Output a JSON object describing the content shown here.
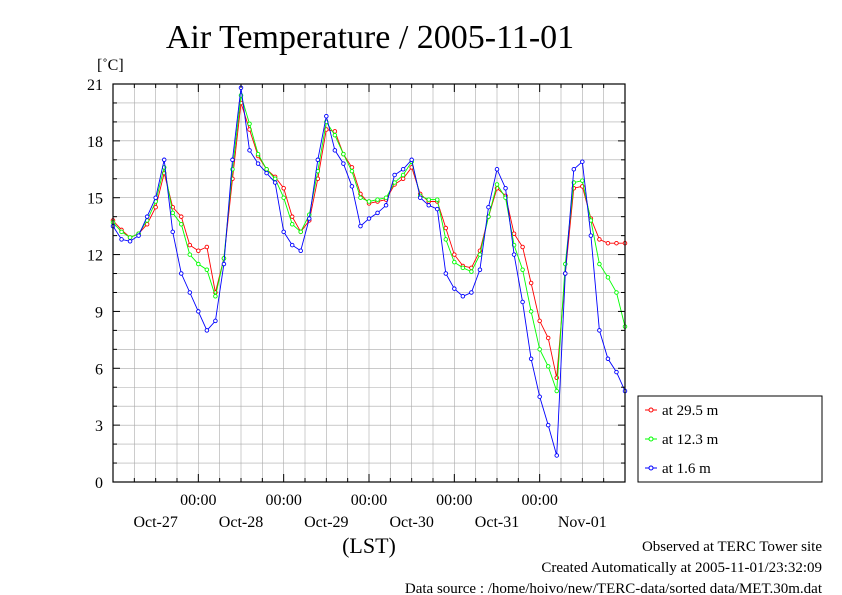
{
  "chart_data": {
    "type": "line",
    "title": "Air Temperature / 2005-11-01",
    "ylabel": "[˚C]",
    "xlabel": "(LST)",
    "ylim": [
      0,
      21
    ],
    "y_ticks": [
      0,
      3,
      6,
      9,
      12,
      15,
      18,
      21
    ],
    "x_range_days": [
      26.0,
      32.0
    ],
    "x_time_labels": [
      "00:00",
      "00:00",
      "00:00",
      "00:00",
      "00:00"
    ],
    "x_date_labels": [
      "Oct-27",
      "Oct-28",
      "Oct-29",
      "Oct-30",
      "Oct-31",
      "Nov-01"
    ],
    "legend_position": "bottom-right",
    "grid": true,
    "series": [
      {
        "name": "at 29.5 m",
        "color": "#ff0000",
        "x": [
          26.0,
          26.1,
          26.2,
          26.3,
          26.4,
          26.5,
          26.6,
          26.7,
          26.8,
          26.9,
          27.0,
          27.1,
          27.2,
          27.3,
          27.4,
          27.5,
          27.6,
          27.7,
          27.8,
          27.9,
          28.0,
          28.1,
          28.2,
          28.3,
          28.4,
          28.5,
          28.6,
          28.7,
          28.8,
          28.9,
          29.0,
          29.1,
          29.2,
          29.3,
          29.4,
          29.5,
          29.6,
          29.7,
          29.8,
          29.9,
          30.0,
          30.1,
          30.2,
          30.3,
          30.4,
          30.5,
          30.6,
          30.7,
          30.8,
          30.9,
          31.0,
          31.1,
          31.2,
          31.3,
          31.4,
          31.5,
          31.6,
          31.7,
          31.8,
          31.9,
          32.0
        ],
        "values": [
          13.8,
          13.3,
          12.9,
          13.1,
          13.6,
          14.5,
          16.3,
          14.5,
          14.0,
          12.5,
          12.2,
          12.4,
          10.0,
          11.8,
          16.0,
          20.0,
          18.6,
          17.2,
          16.5,
          16.1,
          15.5,
          14.0,
          13.2,
          13.8,
          16.0,
          18.6,
          18.5,
          17.3,
          16.6,
          15.2,
          14.7,
          14.8,
          14.9,
          15.7,
          16.0,
          16.6,
          15.2,
          14.8,
          14.8,
          13.4,
          12.0,
          11.4,
          11.3,
          12.2,
          14.0,
          15.5,
          15.1,
          13.1,
          12.4,
          10.5,
          8.5,
          7.6,
          5.5,
          11.0,
          15.5,
          15.6,
          13.9,
          12.8,
          12.6,
          12.6,
          12.6
        ]
      },
      {
        "name": "at 12.3 m",
        "color": "#00ff00",
        "x": [
          26.0,
          26.1,
          26.2,
          26.3,
          26.4,
          26.5,
          26.6,
          26.7,
          26.8,
          26.9,
          27.0,
          27.1,
          27.2,
          27.3,
          27.4,
          27.5,
          27.6,
          27.7,
          27.8,
          27.9,
          28.0,
          28.1,
          28.2,
          28.3,
          28.4,
          28.5,
          28.6,
          28.7,
          28.8,
          28.9,
          29.0,
          29.1,
          29.2,
          29.3,
          29.4,
          29.5,
          29.6,
          29.7,
          29.8,
          29.9,
          30.0,
          30.1,
          30.2,
          30.3,
          30.4,
          30.5,
          30.6,
          30.7,
          30.8,
          30.9,
          31.0,
          31.1,
          31.2,
          31.3,
          31.4,
          31.5,
          31.6,
          31.7,
          31.8,
          31.9,
          32.0
        ],
        "values": [
          13.7,
          13.2,
          12.9,
          13.1,
          13.8,
          14.8,
          16.6,
          14.2,
          13.6,
          12.0,
          11.5,
          11.2,
          9.8,
          11.8,
          16.5,
          20.4,
          18.9,
          17.3,
          16.5,
          16.0,
          15.0,
          13.6,
          13.2,
          14.1,
          16.4,
          19.0,
          18.3,
          17.3,
          16.4,
          15.0,
          14.8,
          14.9,
          15.0,
          15.8,
          16.2,
          16.9,
          15.1,
          14.9,
          14.9,
          12.8,
          11.6,
          11.3,
          11.1,
          12.0,
          14.0,
          15.7,
          15.0,
          12.5,
          11.2,
          9.0,
          7.0,
          6.1,
          4.8,
          11.5,
          15.8,
          15.9,
          13.8,
          11.5,
          10.8,
          10.0,
          8.2
        ]
      },
      {
        "name": "at 1.6 m",
        "color": "#0000ff",
        "x": [
          26.0,
          26.1,
          26.2,
          26.3,
          26.4,
          26.5,
          26.6,
          26.7,
          26.8,
          26.9,
          27.0,
          27.1,
          27.2,
          27.3,
          27.4,
          27.5,
          27.6,
          27.7,
          27.8,
          27.9,
          28.0,
          28.1,
          28.2,
          28.3,
          28.4,
          28.5,
          28.6,
          28.7,
          28.8,
          28.9,
          29.0,
          29.1,
          29.2,
          29.3,
          29.4,
          29.5,
          29.6,
          29.7,
          29.8,
          29.9,
          30.0,
          30.1,
          30.2,
          30.3,
          30.4,
          30.5,
          30.6,
          30.7,
          30.8,
          30.9,
          31.0,
          31.1,
          31.2,
          31.3,
          31.4,
          31.5,
          31.6,
          31.7,
          31.8,
          31.9,
          32.0
        ],
        "values": [
          13.5,
          12.8,
          12.7,
          13.0,
          14.0,
          15.0,
          17.0,
          13.2,
          11.0,
          10.0,
          9.0,
          8.0,
          8.5,
          11.5,
          17.0,
          20.8,
          17.5,
          16.8,
          16.3,
          15.8,
          13.2,
          12.5,
          12.2,
          13.9,
          17.0,
          19.3,
          17.5,
          16.8,
          15.6,
          13.5,
          13.9,
          14.2,
          14.6,
          16.2,
          16.5,
          17.0,
          15.0,
          14.6,
          14.4,
          11.0,
          10.2,
          9.8,
          10.0,
          11.2,
          14.5,
          16.5,
          15.5,
          12.0,
          9.5,
          6.5,
          4.5,
          3.0,
          1.4,
          11.0,
          16.5,
          16.9,
          13.0,
          8.0,
          6.5,
          5.8,
          4.8
        ]
      }
    ]
  },
  "footer": {
    "line1": "Observed at TERC Tower site",
    "line2": "Created Automatically at 2005-11-01/23:32:09",
    "line3": "Data source : /home/hoivo/new/TERC-data/sorted  data/MET.30m.dat"
  }
}
